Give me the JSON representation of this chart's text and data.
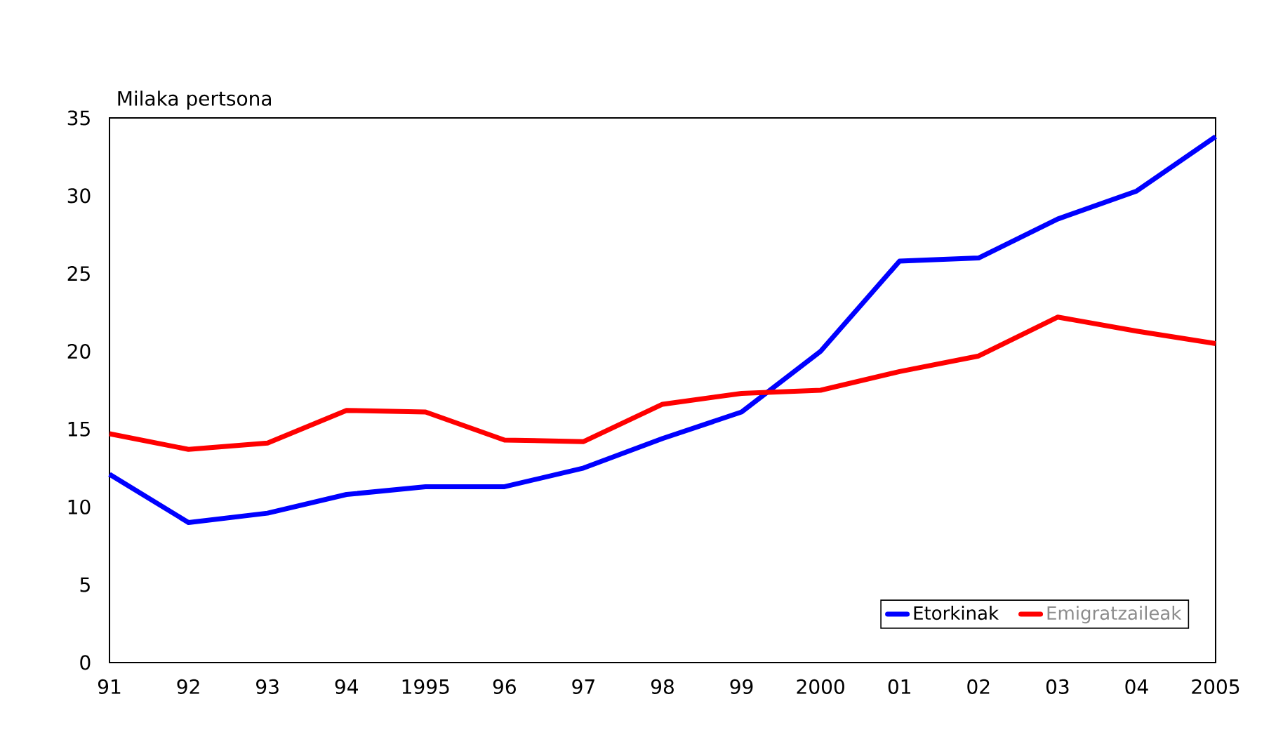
{
  "chart_data": {
    "type": "line",
    "ylabel": "Milaka pertsona",
    "categories": [
      "91",
      "92",
      "93",
      "94",
      "1995",
      "96",
      "97",
      "98",
      "99",
      "2000",
      "01",
      "02",
      "03",
      "04",
      "2005"
    ],
    "ylim": [
      0,
      35
    ],
    "yticks": [
      0,
      5,
      10,
      15,
      20,
      25,
      30,
      35
    ],
    "legend": "bottom right",
    "line_style": "solid",
    "series": [
      {
        "name": "Etorkinak",
        "color": "#0000ff",
        "values": [
          12.1,
          9.0,
          9.6,
          10.8,
          11.3,
          11.3,
          12.5,
          14.4,
          16.1,
          20.0,
          25.8,
          26.0,
          28.5,
          30.3,
          33.8
        ]
      },
      {
        "name": "Emigratzaileak",
        "color": "#ff0000",
        "values": [
          14.7,
          13.7,
          14.1,
          16.2,
          16.1,
          14.3,
          14.2,
          16.6,
          17.3,
          17.5,
          18.7,
          19.7,
          22.2,
          21.3,
          20.5
        ]
      }
    ]
  }
}
